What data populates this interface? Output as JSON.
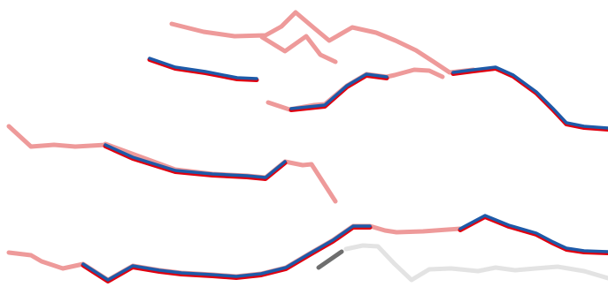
{
  "colors": {
    "background": "#ffffff",
    "highlight_red": "#e0000f",
    "highlight_blue": "#1e5aa8",
    "faded_red": "#ee9a9a",
    "faded_gray": "#e3e3e3",
    "dark_gray": "#6e6e6e"
  },
  "strokes": [
    {
      "name": "faded-trace-1",
      "style": "faded_red"
    },
    {
      "name": "faded-trace-2",
      "style": "faded_red"
    },
    {
      "name": "faded-trace-3",
      "style": "faded_red"
    },
    {
      "name": "faded-trace-4",
      "style": "faded_red"
    },
    {
      "name": "faded-trace-5",
      "style": "faded_red"
    },
    {
      "name": "highlighted-trace-1",
      "style": "highlight"
    },
    {
      "name": "highlighted-trace-2",
      "style": "highlight"
    },
    {
      "name": "highlighted-trace-3",
      "style": "highlight"
    },
    {
      "name": "highlighted-trace-4",
      "style": "highlight"
    },
    {
      "name": "highlighted-trace-5",
      "style": "highlight"
    },
    {
      "name": "highlighted-trace-6",
      "style": "highlight"
    },
    {
      "name": "gray-trace",
      "style": "faded_gray"
    },
    {
      "name": "dark-gray-segment",
      "style": "dark_gray"
    }
  ]
}
